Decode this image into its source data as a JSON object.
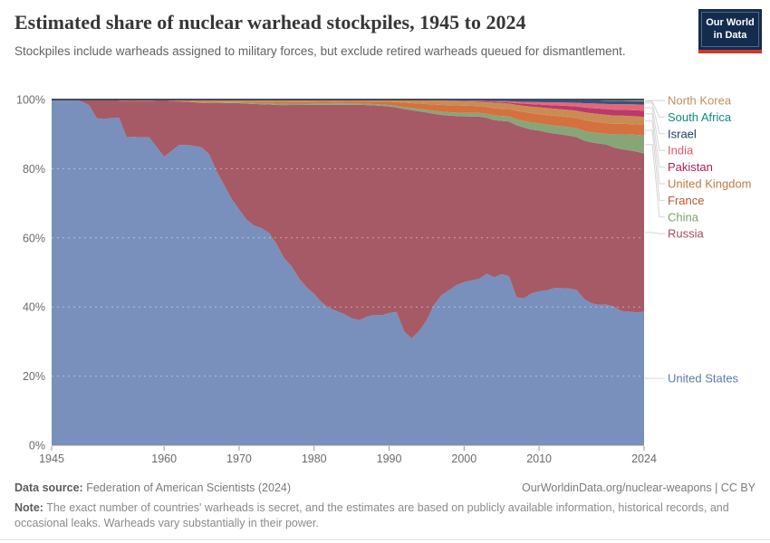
{
  "header": {
    "title": "Estimated share of nuclear warhead stockpiles, 1945 to 2024",
    "subtitle": "Stockpiles include warheads assigned to military forces, but exclude retired warheads queued for dismantlement.",
    "logo": {
      "line1": "Our World",
      "line2": "in Data"
    }
  },
  "footer": {
    "data_source_label": "Data source:",
    "data_source": "Federation of American Scientists (2024)",
    "link": "OurWorldinData.org/nuclear-weapons | CC BY",
    "note_label": "Note:",
    "note": "The exact number of countries' warheads is secret, and the estimates are based on publicly available information, historical records, and occasional leaks. Warheads vary substantially in their power."
  },
  "colors": {
    "logo_navy": "#132C4E",
    "logo_red": "#D2352C",
    "grid_dash": "rgba(255,255,255,0.45)",
    "axis_text": "#6b6b6b",
    "axis_line": "#cccccc",
    "tick_mark": "#999999",
    "top_line": "#454C5B",
    "connector": "#d6d6d6"
  },
  "chart_data": {
    "type": "area",
    "stacking": "percent",
    "title": "Estimated share of nuclear warhead stockpiles, 1945 to 2024",
    "subtitle": "Stockpiles include warheads assigned to military forces, but exclude retired warheads queued for dismantlement.",
    "unit": "estimated nuclear warhead stockpile (counts, normalized to 100% share per year)",
    "x_range": [
      1945,
      2024
    ],
    "x_ticks": [
      1945,
      1960,
      1970,
      1980,
      1990,
      2000,
      2010,
      2024
    ],
    "y_ticks": [
      0,
      20,
      40,
      60,
      80,
      100
    ],
    "y_tick_suffix": "%",
    "grid": true,
    "legend_position": "right",
    "series": [
      {
        "name": "United States",
        "color": "#5B7CAB",
        "fill": "#7890BB",
        "points": [
          [
            1945,
            2
          ],
          [
            1946,
            9
          ],
          [
            1947,
            13
          ],
          [
            1948,
            50
          ],
          [
            1949,
            170
          ],
          [
            1950,
            299
          ],
          [
            1951,
            438
          ],
          [
            1952,
            841
          ],
          [
            1953,
            1169
          ],
          [
            1954,
            1703
          ],
          [
            1955,
            2422
          ],
          [
            1956,
            3692
          ],
          [
            1957,
            5543
          ],
          [
            1958,
            7345
          ],
          [
            1959,
            12298
          ],
          [
            1960,
            18638
          ],
          [
            1961,
            22229
          ],
          [
            1962,
            25540
          ],
          [
            1963,
            28133
          ],
          [
            1964,
            29463
          ],
          [
            1965,
            31139
          ],
          [
            1966,
            31175
          ],
          [
            1967,
            31255
          ],
          [
            1968,
            29561
          ],
          [
            1969,
            27552
          ],
          [
            1970,
            26008
          ],
          [
            1971,
            25830
          ],
          [
            1972,
            26516
          ],
          [
            1973,
            27835
          ],
          [
            1974,
            28537
          ],
          [
            1975,
            27519
          ],
          [
            1976,
            25914
          ],
          [
            1977,
            25542
          ],
          [
            1978,
            24418
          ],
          [
            1979,
            24138
          ],
          [
            1980,
            24104
          ],
          [
            1981,
            23208
          ],
          [
            1982,
            22886
          ],
          [
            1983,
            23305
          ],
          [
            1984,
            23459
          ],
          [
            1985,
            23368
          ],
          [
            1986,
            23317
          ],
          [
            1987,
            23575
          ],
          [
            1988,
            23205
          ],
          [
            1989,
            22217
          ],
          [
            1990,
            21392
          ],
          [
            1991,
            19008
          ],
          [
            1992,
            13708
          ],
          [
            1993,
            11511
          ],
          [
            1994,
            10979
          ],
          [
            1995,
            10904
          ],
          [
            1996,
            11011
          ],
          [
            1997,
            10903
          ],
          [
            1998,
            10732
          ],
          [
            1999,
            10685
          ],
          [
            2000,
            10577
          ],
          [
            2001,
            10526
          ],
          [
            2002,
            10457
          ],
          [
            2003,
            10027
          ],
          [
            2004,
            8570
          ],
          [
            2005,
            8360
          ],
          [
            2006,
            7853
          ],
          [
            2007,
            5709
          ],
          [
            2008,
            5273
          ],
          [
            2009,
            5113
          ],
          [
            2010,
            5066
          ],
          [
            2011,
            4897
          ],
          [
            2012,
            4881
          ],
          [
            2013,
            4804
          ],
          [
            2014,
            4717
          ],
          [
            2015,
            4571
          ],
          [
            2016,
            4018
          ],
          [
            2017,
            3822
          ],
          [
            2018,
            3785
          ],
          [
            2019,
            3805
          ],
          [
            2020,
            3750
          ],
          [
            2021,
            3708
          ],
          [
            2022,
            3708
          ],
          [
            2023,
            3708
          ],
          [
            2024,
            3708
          ]
        ]
      },
      {
        "name": "Russia",
        "color": "#A34B5E",
        "fill": "#A55A66",
        "points": [
          [
            1949,
            1
          ],
          [
            1950,
            5
          ],
          [
            1951,
            25
          ],
          [
            1952,
            50
          ],
          [
            1953,
            65
          ],
          [
            1954,
            90
          ],
          [
            1955,
            285
          ],
          [
            1956,
            430
          ],
          [
            1957,
            660
          ],
          [
            1958,
            869
          ],
          [
            1959,
            1920
          ],
          [
            1960,
            3650
          ],
          [
            1961,
            3770
          ],
          [
            1962,
            3715
          ],
          [
            1963,
            4055
          ],
          [
            1964,
            4285
          ],
          [
            1965,
            4650
          ],
          [
            1966,
            5500
          ],
          [
            1967,
            7815
          ],
          [
            1968,
            9335
          ],
          [
            1969,
            10715
          ],
          [
            1970,
            11736
          ],
          [
            1971,
            13279
          ],
          [
            1972,
            14666
          ],
          [
            1973,
            15877
          ],
          [
            1974,
            17286
          ],
          [
            1975,
            19055
          ],
          [
            1976,
            21205
          ],
          [
            1977,
            23044
          ],
          [
            1978,
            25393
          ],
          [
            1979,
            27935
          ],
          [
            1980,
            30062
          ],
          [
            1981,
            32049
          ],
          [
            1982,
            33952
          ],
          [
            1983,
            35804
          ],
          [
            1984,
            37431
          ],
          [
            1985,
            39197
          ],
          [
            1986,
            40159
          ],
          [
            1987,
            38859
          ],
          [
            1988,
            37333
          ],
          [
            1989,
            35805
          ],
          [
            1990,
            33417
          ],
          [
            1991,
            29154
          ],
          [
            1992,
            26734
          ],
          [
            1993,
            24587
          ],
          [
            1994,
            21101
          ],
          [
            1995,
            18179
          ],
          [
            1996,
            14978
          ],
          [
            1997,
            13077
          ],
          [
            1998,
            12085
          ],
          [
            1999,
            11264
          ],
          [
            2000,
            10764
          ],
          [
            2001,
            10451
          ],
          [
            2002,
            10201
          ],
          [
            2003,
            9126
          ],
          [
            2004,
            8028
          ],
          [
            2005,
            7500
          ],
          [
            2006,
            7200
          ],
          [
            2007,
            6643
          ],
          [
            2008,
            6117
          ],
          [
            2009,
            5500
          ],
          [
            2010,
            5300
          ],
          [
            2011,
            5000
          ],
          [
            2012,
            4800
          ],
          [
            2013,
            4700
          ],
          [
            2014,
            4600
          ],
          [
            2015,
            4500
          ],
          [
            2016,
            4350
          ],
          [
            2017,
            4330
          ],
          [
            2018,
            4350
          ],
          [
            2019,
            4330
          ],
          [
            2020,
            4315
          ],
          [
            2021,
            4477
          ],
          [
            2022,
            4477
          ],
          [
            2023,
            4489
          ],
          [
            2024,
            4380
          ]
        ]
      },
      {
        "name": "China",
        "color": "#7FA06B",
        "fill": "#87A678",
        "points": [
          [
            1964,
            1
          ],
          [
            1965,
            5
          ],
          [
            1970,
            75
          ],
          [
            1975,
            185
          ],
          [
            1980,
            205
          ],
          [
            1985,
            243
          ],
          [
            1990,
            232
          ],
          [
            1995,
            234
          ],
          [
            2000,
            232
          ],
          [
            2005,
            235
          ],
          [
            2010,
            240
          ],
          [
            2015,
            260
          ],
          [
            2017,
            270
          ],
          [
            2019,
            290
          ],
          [
            2020,
            350
          ],
          [
            2021,
            410
          ],
          [
            2022,
            440
          ],
          [
            2023,
            470
          ],
          [
            2024,
            500
          ]
        ]
      },
      {
        "name": "France",
        "color": "#C05730",
        "fill": "#D4713F",
        "points": [
          [
            1964,
            4
          ],
          [
            1965,
            32
          ],
          [
            1970,
            36
          ],
          [
            1975,
            188
          ],
          [
            1980,
            250
          ],
          [
            1985,
            360
          ],
          [
            1990,
            505
          ],
          [
            1992,
            540
          ],
          [
            1995,
            500
          ],
          [
            2000,
            470
          ],
          [
            2005,
            350
          ],
          [
            2010,
            300
          ],
          [
            2015,
            300
          ],
          [
            2020,
            290
          ],
          [
            2024,
            290
          ]
        ]
      },
      {
        "name": "United Kingdom",
        "color": "#C07B41",
        "fill": "#C98D54",
        "points": [
          [
            1953,
            1
          ],
          [
            1955,
            10
          ],
          [
            1960,
            42
          ],
          [
            1965,
            310
          ],
          [
            1970,
            280
          ],
          [
            1975,
            350
          ],
          [
            1980,
            350
          ],
          [
            1985,
            300
          ],
          [
            1990,
            300
          ],
          [
            1995,
            300
          ],
          [
            2000,
            280
          ],
          [
            2005,
            280
          ],
          [
            2007,
            225
          ],
          [
            2010,
            225
          ],
          [
            2015,
            215
          ],
          [
            2020,
            225
          ],
          [
            2024,
            225
          ]
        ]
      },
      {
        "name": "Pakistan",
        "color": "#B01E58",
        "fill": "#BB3A6A",
        "points": [
          [
            1987,
            1
          ],
          [
            1990,
            7
          ],
          [
            1995,
            16
          ],
          [
            1998,
            24
          ],
          [
            2000,
            28
          ],
          [
            2005,
            50
          ],
          [
            2010,
            90
          ],
          [
            2015,
            125
          ],
          [
            2020,
            160
          ],
          [
            2024,
            170
          ]
        ]
      },
      {
        "name": "India",
        "color": "#E0566F",
        "fill": "#E4677C",
        "points": [
          [
            1987,
            2
          ],
          [
            1990,
            7
          ],
          [
            1995,
            12
          ],
          [
            2000,
            15
          ],
          [
            2005,
            44
          ],
          [
            2010,
            80
          ],
          [
            2015,
            110
          ],
          [
            2020,
            150
          ],
          [
            2024,
            172
          ]
        ]
      },
      {
        "name": "Israel",
        "color": "#1D3A60",
        "fill": "#33547E",
        "points": [
          [
            1967,
            2
          ],
          [
            1970,
            8
          ],
          [
            1975,
            20
          ],
          [
            1980,
            31
          ],
          [
            1985,
            42
          ],
          [
            1990,
            53
          ],
          [
            1995,
            63
          ],
          [
            2000,
            72
          ],
          [
            2005,
            80
          ],
          [
            2010,
            80
          ],
          [
            2015,
            80
          ],
          [
            2020,
            90
          ],
          [
            2024,
            90
          ]
        ]
      },
      {
        "name": "South Africa",
        "color": "#0E8B80",
        "fill": "#3F9E94",
        "points": [
          [
            1979,
            1
          ],
          [
            1982,
            2
          ],
          [
            1984,
            4
          ],
          [
            1986,
            5
          ],
          [
            1989,
            6
          ],
          [
            1990,
            4
          ],
          [
            1991,
            1
          ],
          [
            1992,
            0
          ]
        ]
      },
      {
        "name": "North Korea",
        "color": "#BF9061",
        "fill": "#C49A6C",
        "points": [
          [
            2006,
            1
          ],
          [
            2008,
            2
          ],
          [
            2010,
            5
          ],
          [
            2013,
            8
          ],
          [
            2015,
            13
          ],
          [
            2017,
            20
          ],
          [
            2020,
            35
          ],
          [
            2022,
            40
          ],
          [
            2024,
            50
          ]
        ]
      }
    ]
  }
}
